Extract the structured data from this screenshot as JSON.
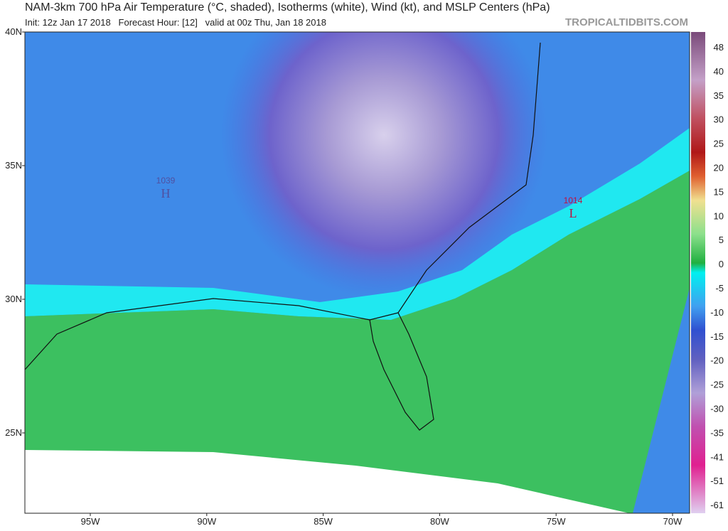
{
  "header": {
    "title": "NAM-3km 700 hPa Air Temperature (°C, shaded), Isotherms (white), Wind (kt), and MSLP Centers (hPa)",
    "subtitle": "Init: 12z Jan 17 2018   Forecast Hour: [12]   valid at 00z Thu, Jan 18 2018",
    "brand": "TROPICALTIDBITS.COM"
  },
  "map": {
    "lat_labels": [
      "40N",
      "35N",
      "30N",
      "25N"
    ],
    "lon_labels": [
      "95W",
      "90W",
      "85W",
      "80W",
      "75W",
      "70W"
    ],
    "centers": [
      {
        "value": "1039",
        "symbol": "H"
      },
      {
        "value": "1014",
        "symbol": "L"
      }
    ]
  },
  "colorbar": {
    "labels": [
      "48",
      "40",
      "35",
      "30",
      "25",
      "20",
      "15",
      "10",
      "5",
      "0",
      "-5",
      "-10",
      "-15",
      "-20",
      "-25",
      "-30",
      "-35",
      "-41",
      "-51",
      "-61"
    ]
  }
}
